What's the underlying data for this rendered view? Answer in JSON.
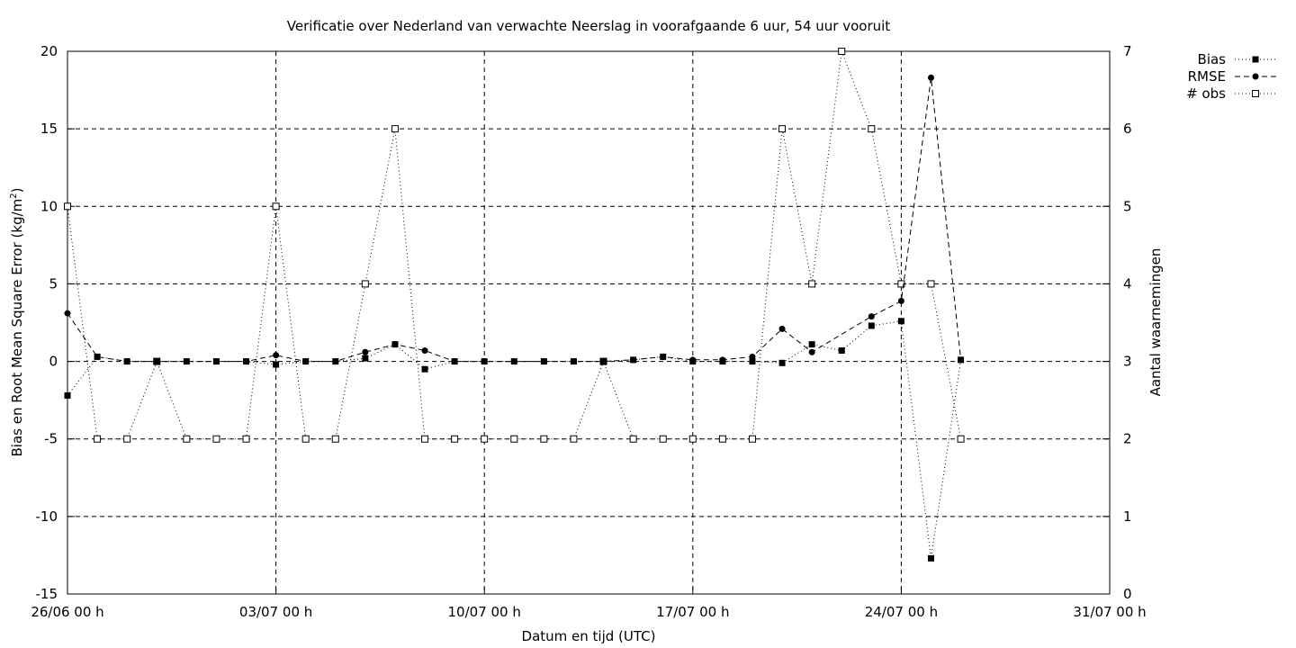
{
  "chart_data": {
    "type": "line",
    "title": "Verificatie over Nederland van verwachte Neerslag in voorafgaande 6 uur, 54 uur vooruit",
    "xlabel": "Datum en tijd (UTC)",
    "ylabel_main": "Bias en Root Mean Square Error (kg/m",
    "ylabel_sup": "2",
    "ylabel_close": ")",
    "y2label": "Aantal waarnemingen",
    "x_start": "26/06 00 h",
    "x_end": "31/07 00 h",
    "xlim_days": [
      0,
      35
    ],
    "ylim": [
      -15,
      20
    ],
    "y2lim": [
      0,
      7
    ],
    "grid": true,
    "legend_position": "top-right, outside plot",
    "xticks": [
      {
        "day": 0,
        "label": "26/06 00 h"
      },
      {
        "day": 7,
        "label": "03/07 00 h"
      },
      {
        "day": 14,
        "label": "10/07 00 h"
      },
      {
        "day": 21,
        "label": "17/07 00 h"
      },
      {
        "day": 28,
        "label": "24/07 00 h"
      },
      {
        "day": 35,
        "label": "31/07 00 h"
      }
    ],
    "yticks": [
      {
        "v": 20,
        "label": "20"
      },
      {
        "v": 15,
        "label": "15"
      },
      {
        "v": 10,
        "label": "10"
      },
      {
        "v": 5,
        "label": "5"
      },
      {
        "v": 0,
        "label": "0"
      },
      {
        "v": -5,
        "label": "-5"
      },
      {
        "v": -10,
        "label": "-10"
      },
      {
        "v": -15,
        "label": "-15"
      }
    ],
    "y2ticks": [
      {
        "v": 7,
        "label": "7"
      },
      {
        "v": 6,
        "label": "6"
      },
      {
        "v": 5,
        "label": "5"
      },
      {
        "v": 4,
        "label": "4"
      },
      {
        "v": 3,
        "label": "3"
      },
      {
        "v": 2,
        "label": "2"
      },
      {
        "v": 1,
        "label": "1"
      },
      {
        "v": 0,
        "label": "0"
      }
    ],
    "x_days": [
      0,
      1,
      2,
      3,
      4,
      5,
      6,
      7,
      8,
      9,
      10,
      11,
      12,
      13,
      14,
      15,
      16,
      17,
      18,
      19,
      20,
      21,
      22,
      23,
      24,
      25,
      26,
      27,
      28,
      29,
      30
    ],
    "series": [
      {
        "name": "Bias",
        "axis": "y",
        "marker": "filled-square",
        "dash": "1,3",
        "values": [
          -2.2,
          0.3,
          0,
          0,
          0,
          0,
          0,
          -0.2,
          0,
          0,
          0.2,
          1.1,
          -0.5,
          0,
          0,
          0,
          0,
          0,
          0,
          0.1,
          0.3,
          0,
          0,
          0,
          -0.1,
          1.1,
          0.7,
          2.3,
          2.6,
          -12.7,
          0.1
        ]
      },
      {
        "name": "RMSE",
        "axis": "y",
        "marker": "filled-circle",
        "dash": "6,4",
        "values": [
          3.1,
          0.3,
          0,
          0,
          0,
          0,
          0,
          0.4,
          0,
          0,
          0.6,
          1.1,
          0.7,
          0,
          0,
          0,
          0,
          0,
          0,
          0.1,
          0.3,
          0.1,
          0.1,
          0.3,
          2.1,
          0.6,
          2.9,
          3.9,
          18.3,
          0.1
        ]
      },
      {
        "name": "# obs",
        "axis": "y2",
        "marker": "open-square",
        "dash": "1,3",
        "values": [
          5,
          2,
          2,
          3,
          2,
          2,
          2,
          5,
          2,
          2,
          4,
          6,
          2,
          2,
          2,
          2,
          2,
          2,
          3,
          2,
          2,
          2,
          2,
          2,
          6,
          4,
          7,
          6,
          4,
          4,
          2
        ]
      }
    ],
    "rmse_x_days": [
      0,
      1,
      2,
      3,
      4,
      5,
      6,
      7,
      8,
      9,
      10,
      11,
      12,
      13,
      14,
      15,
      16,
      17,
      18,
      19,
      20,
      21,
      22,
      23,
      24,
      25,
      27,
      28,
      29,
      30
    ]
  }
}
